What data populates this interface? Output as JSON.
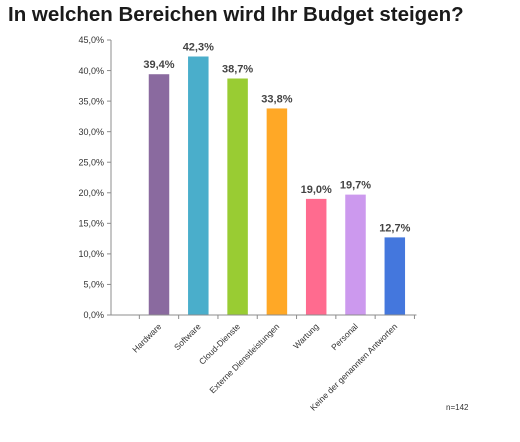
{
  "chart_data": {
    "type": "bar",
    "title": "In welchen Bereichen wird Ihr Budget steigen?",
    "categories": [
      "Hardware",
      "Software",
      "Cloud-Dienste",
      "Externe Dienstleistungen",
      "Wartung",
      "Personal",
      "Keine der genannten Antworten"
    ],
    "values": [
      39.4,
      42.3,
      38.7,
      33.8,
      19.0,
      19.7,
      12.7
    ],
    "value_labels": [
      "39,4%",
      "42,3%",
      "38,7%",
      "33,8%",
      "19,0%",
      "19,7%",
      "12,7%"
    ],
    "colors": [
      "#8a6a9f",
      "#4aaecb",
      "#99cc33",
      "#ffa826",
      "#ff6b8f",
      "#cc99ee",
      "#4477dd"
    ],
    "ylim": [
      0,
      45
    ],
    "yticks": [
      0,
      5,
      10,
      15,
      20,
      25,
      30,
      35,
      40,
      45
    ],
    "ytick_labels": [
      "0,0%",
      "5,0%",
      "10,0%",
      "15,0%",
      "20,0%",
      "25,0%",
      "30,0%",
      "35,0%",
      "40,0%",
      "45,0%"
    ],
    "xlabel": "",
    "ylabel": "",
    "grid": false,
    "legend": "none"
  },
  "footnote": "n=142"
}
